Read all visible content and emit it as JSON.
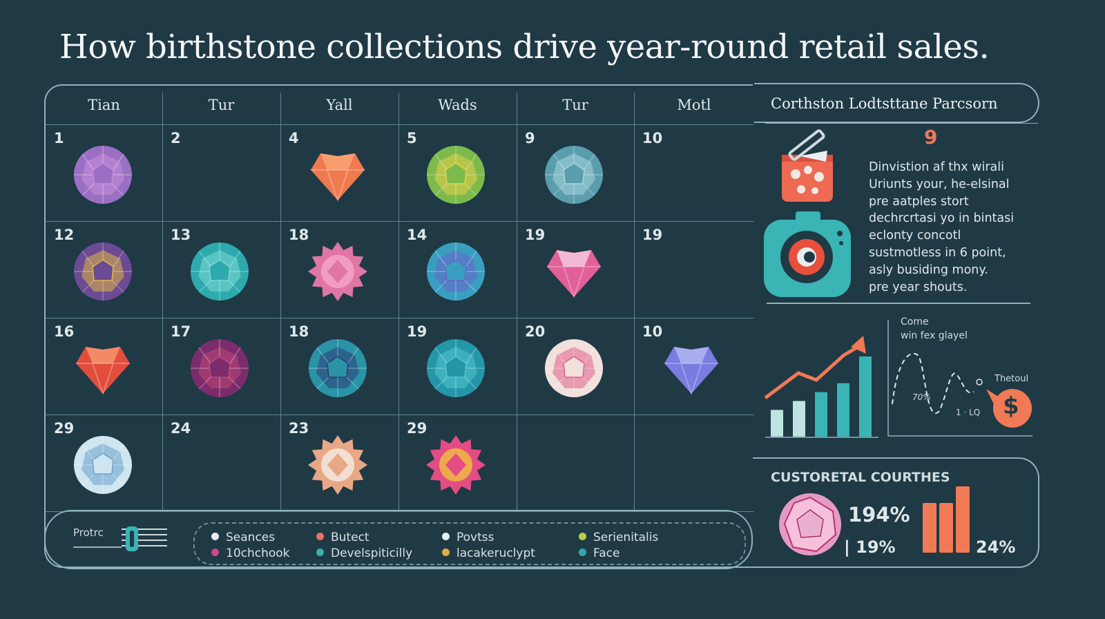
{
  "title": "How birthstone collections drive year-round retail sales.",
  "calendar": {
    "headers": [
      "Tian",
      "Tur",
      "Yall",
      "Wads",
      "Tur",
      "Motl"
    ],
    "cells": [
      {
        "num": "1",
        "gem": "round",
        "color": "#9b6fc4",
        "accent": "#c78fd8"
      },
      {
        "num": "2",
        "gem": "none"
      },
      {
        "num": "4",
        "gem": "heart",
        "color": "#f07a50",
        "accent": "#f8a878"
      },
      {
        "num": "5",
        "gem": "round",
        "color": "#7cba4c",
        "accent": "#e8d04a"
      },
      {
        "num": "9",
        "gem": "round",
        "color": "#5a9eae",
        "accent": "#a8d6de"
      },
      {
        "num": "10",
        "gem": "none"
      },
      {
        "num": "12",
        "gem": "round",
        "color": "#6c4a94",
        "accent": "#e0b840"
      },
      {
        "num": "13",
        "gem": "round",
        "color": "#2eaaae",
        "accent": "#7ed8d6"
      },
      {
        "num": "18",
        "gem": "flower",
        "color": "#e076a6",
        "accent": "#f4a8c8"
      },
      {
        "num": "14",
        "gem": "round",
        "color": "#3a9ec0",
        "accent": "#6a64c8"
      },
      {
        "num": "19",
        "gem": "heart",
        "color": "#e2609a",
        "accent": "#f8d0e0"
      },
      {
        "num": "19",
        "gem": "none"
      },
      {
        "num": "16",
        "gem": "heart",
        "color": "#e24e3c",
        "accent": "#f89a70"
      },
      {
        "num": "17",
        "gem": "round",
        "color": "#7a2c6c",
        "accent": "#c04878"
      },
      {
        "num": "18",
        "gem": "round",
        "color": "#2a94a6",
        "accent": "#2c3a78"
      },
      {
        "num": "19",
        "gem": "round",
        "color": "#2496a8",
        "accent": "#52c6d0"
      },
      {
        "num": "20",
        "gem": "round",
        "color": "#f2e0dc",
        "accent": "#e0608a"
      },
      {
        "num": "10",
        "gem": "heart",
        "color": "#7a7ce0",
        "accent": "#b6b8f4"
      },
      {
        "num": "29",
        "gem": "round",
        "color": "#cfe6f2",
        "accent": "#6aa0c8"
      },
      {
        "num": "24",
        "gem": "none"
      },
      {
        "num": "23",
        "gem": "flower",
        "color": "#e8a886",
        "accent": "#f4ece4"
      },
      {
        "num": "29",
        "gem": "flower",
        "color": "#e44c84",
        "accent": "#f0c040"
      },
      {
        "num": "",
        "gem": "none"
      },
      {
        "num": "",
        "gem": "none"
      }
    ]
  },
  "legend": {
    "label": "Protrc",
    "items": [
      {
        "label": "Seances",
        "color": "#e8eef0"
      },
      {
        "label": "Butect",
        "color": "#f07060"
      },
      {
        "label": "Povtss",
        "color": "#e8eef0"
      },
      {
        "label": "Serienitalis",
        "color": "#b8d040"
      },
      {
        "label": "10chchook",
        "color": "#d04890"
      },
      {
        "label": "Develspiticilly",
        "color": "#3ab0b0"
      },
      {
        "label": "lacakeruclypt",
        "color": "#e0b040"
      },
      {
        "label": "Face",
        "color": "#30a8a8"
      }
    ]
  },
  "panel": {
    "title": "Corthston Lodtsttane Parcsorn",
    "symbol": "9",
    "desc": [
      "Dinvistion af thx wirali",
      "Uriunts your, he-elsinal",
      "pre aatples stort",
      "dechrcrtasi yo in bintasi",
      "eclonty concotl",
      "sustmotless in 6 point,",
      "asly busiding mony.",
      "pre year shouts."
    ],
    "bar_chart": {
      "values": [
        3,
        4,
        5,
        6,
        9
      ],
      "trend": "up"
    },
    "line_chart": {
      "label1": "Come",
      "label2": "win fex glayel",
      "pct": "70%",
      "note": "1 · LQ",
      "side": "Thetoul",
      "currency": "$"
    },
    "bottom": {
      "title": "CUSTORETAL COURTHES",
      "stat1": "194%",
      "stat2": "19%",
      "stat3": "24%",
      "bars": [
        3,
        3,
        4
      ]
    }
  },
  "colors": {
    "bg": "#1f3945",
    "line": "#8fb3bd",
    "orange": "#f07a55",
    "teal": "#3ab4b4"
  }
}
